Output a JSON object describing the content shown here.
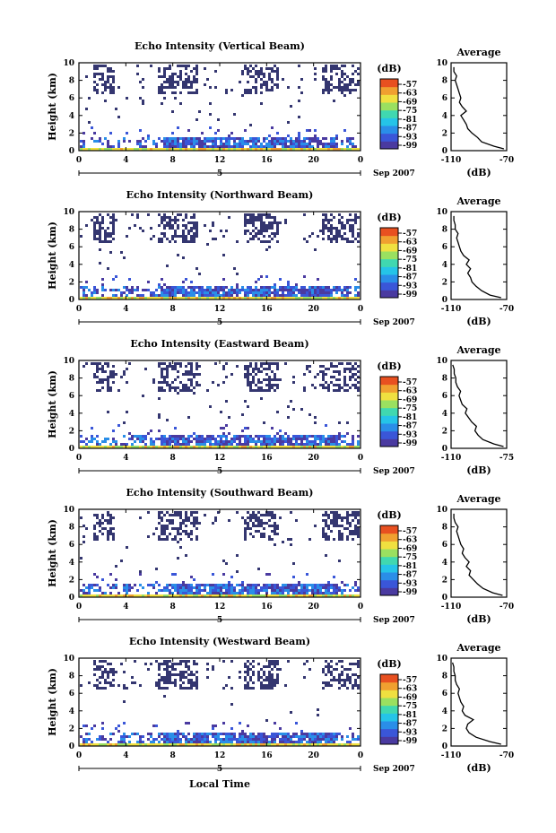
{
  "chart_data": [
    {
      "type": "heatmap",
      "title": "Echo Intensity (Vertical Beam)",
      "ylabel": "Height (km)",
      "xticks": [
        "0",
        "4",
        "8",
        "12",
        "16",
        "20",
        "0"
      ],
      "yticks": [
        "0",
        "2",
        "4",
        "6",
        "8",
        "10"
      ],
      "xlim": [
        0,
        24
      ],
      "ylim": [
        0,
        10
      ],
      "date_marker": "5",
      "date_label": "Sep 2007",
      "colorbar": {
        "unit": "(dB)",
        "ticks": [
          "-57",
          "-63",
          "-69",
          "-75",
          "-81",
          "-87",
          "-93",
          "-99"
        ]
      },
      "average": {
        "title": "Average",
        "xlabel": "(dB)",
        "xticks": [
          "-110",
          "-70"
        ],
        "yticks": [
          "0",
          "2",
          "4",
          "6",
          "8",
          "10"
        ],
        "xlim": [
          -110,
          -70
        ],
        "ylim": [
          0,
          10
        ],
        "height": [
          0.2,
          0.5,
          1.0,
          1.5,
          2.0,
          2.5,
          3.0,
          3.5,
          4.0,
          4.5,
          5.0,
          5.5,
          6.0,
          6.5,
          7.0,
          7.5,
          8.0,
          8.5,
          9.0,
          9.5
        ],
        "value": [
          -72,
          -79,
          -88,
          -91,
          -95,
          -98,
          -99,
          -101,
          -103,
          -99,
          -102,
          -104,
          -103,
          -104,
          -105,
          -106,
          -107,
          -106,
          -108,
          -108
        ]
      }
    },
    {
      "type": "heatmap",
      "title": "Echo Intensity (Northward Beam)",
      "ylabel": "Height (km)",
      "xticks": [
        "0",
        "4",
        "8",
        "12",
        "16",
        "20",
        "0"
      ],
      "yticks": [
        "0",
        "2",
        "4",
        "6",
        "8",
        "10"
      ],
      "xlim": [
        0,
        24
      ],
      "ylim": [
        0,
        10
      ],
      "date_marker": "5",
      "date_label": "Sep 2007",
      "colorbar": {
        "unit": "(dB)",
        "ticks": [
          "-57",
          "-63",
          "-69",
          "-75",
          "-81",
          "-87",
          "-93",
          "-99"
        ]
      },
      "average": {
        "title": "Average",
        "xlabel": "(dB)",
        "xticks": [
          "-110",
          "-70"
        ],
        "yticks": [
          "0",
          "2",
          "4",
          "6",
          "8",
          "10"
        ],
        "xlim": [
          -110,
          -70
        ],
        "ylim": [
          0,
          10
        ],
        "height": [
          0.2,
          0.5,
          1.0,
          1.5,
          2.0,
          2.5,
          3.0,
          3.5,
          4.0,
          4.5,
          5.0,
          5.5,
          6.0,
          6.5,
          7.0,
          7.5,
          8.0,
          8.5,
          9.0,
          9.5
        ],
        "value": [
          -74,
          -82,
          -88,
          -92,
          -95,
          -96,
          -98,
          -96,
          -99,
          -97,
          -101,
          -103,
          -104,
          -105,
          -106,
          -105,
          -107,
          -107,
          -108,
          -108
        ]
      }
    },
    {
      "type": "heatmap",
      "title": "Echo Intensity (Eastward Beam)",
      "ylabel": "Height (km)",
      "xticks": [
        "0",
        "4",
        "8",
        "12",
        "16",
        "20",
        "0"
      ],
      "yticks": [
        "0",
        "2",
        "4",
        "6",
        "8",
        "10"
      ],
      "xlim": [
        0,
        24
      ],
      "ylim": [
        0,
        10
      ],
      "date_marker": "5",
      "date_label": "Sep 2007",
      "colorbar": {
        "unit": "(dB)",
        "ticks": [
          "-57",
          "-63",
          "-69",
          "-75",
          "-81",
          "-87",
          "-93",
          "-99"
        ]
      },
      "average": {
        "title": "Average",
        "xlabel": "(dB)",
        "xticks": [
          "-110",
          "-75"
        ],
        "yticks": [
          "0",
          "2",
          "4",
          "6",
          "8",
          "10"
        ],
        "xlim": [
          -110,
          -75
        ],
        "ylim": [
          0,
          10
        ],
        "height": [
          0.2,
          0.5,
          1.0,
          1.5,
          2.0,
          2.5,
          3.0,
          3.5,
          4.0,
          4.5,
          5.0,
          5.5,
          6.0,
          6.5,
          7.0,
          7.5,
          8.0,
          8.5,
          9.0,
          9.5
        ],
        "value": [
          -77,
          -83,
          -90,
          -93,
          -95,
          -94,
          -97,
          -99,
          -101,
          -100,
          -103,
          -104,
          -105,
          -104,
          -106,
          -107,
          -107,
          -108,
          -108,
          -109
        ]
      }
    },
    {
      "type": "heatmap",
      "title": "Echo Intensity (Southward Beam)",
      "ylabel": "Height (km)",
      "xticks": [
        "0",
        "4",
        "8",
        "12",
        "16",
        "20",
        "0"
      ],
      "yticks": [
        "0",
        "2",
        "4",
        "6",
        "8",
        "10"
      ],
      "xlim": [
        0,
        24
      ],
      "ylim": [
        0,
        10
      ],
      "date_marker": "5",
      "date_label": "Sep 2007",
      "colorbar": {
        "unit": "(dB)",
        "ticks": [
          "-57",
          "-63",
          "-69",
          "-75",
          "-81",
          "-87",
          "-93",
          "-99"
        ]
      },
      "average": {
        "title": "Average",
        "xlabel": "(dB)",
        "xticks": [
          "-110",
          "-70"
        ],
        "yticks": [
          "0",
          "2",
          "4",
          "6",
          "8",
          "10"
        ],
        "xlim": [
          -110,
          -70
        ],
        "ylim": [
          0,
          10
        ],
        "height": [
          0.2,
          0.5,
          1.0,
          1.5,
          2.0,
          2.5,
          3.0,
          3.5,
          4.0,
          4.5,
          5.0,
          5.5,
          6.0,
          6.5,
          7.0,
          7.5,
          8.0,
          8.5,
          9.0,
          9.5
        ],
        "value": [
          -73,
          -80,
          -87,
          -91,
          -94,
          -97,
          -96,
          -99,
          -97,
          -100,
          -102,
          -101,
          -103,
          -104,
          -105,
          -106,
          -105,
          -107,
          -108,
          -108
        ]
      }
    },
    {
      "type": "heatmap",
      "title": "Echo Intensity (Westward Beam)",
      "ylabel": "Height (km)",
      "xticks": [
        "0",
        "4",
        "8",
        "12",
        "16",
        "20",
        "0"
      ],
      "yticks": [
        "0",
        "2",
        "4",
        "6",
        "8",
        "10"
      ],
      "xlim": [
        0,
        24
      ],
      "ylim": [
        0,
        10
      ],
      "xlabel": "Local Time",
      "date_marker": "5",
      "date_label": "Sep 2007",
      "colorbar": {
        "unit": "(dB)",
        "ticks": [
          "-57",
          "-63",
          "-69",
          "-75",
          "-81",
          "-87",
          "-93",
          "-99"
        ]
      },
      "average": {
        "title": "Average",
        "xlabel": "(dB)",
        "xticks": [
          "-110",
          "-70"
        ],
        "yticks": [
          "0",
          "2",
          "4",
          "6",
          "8",
          "10"
        ],
        "xlim": [
          -110,
          -70
        ],
        "ylim": [
          0,
          10
        ],
        "height": [
          0.2,
          0.5,
          1.0,
          1.5,
          2.0,
          2.5,
          3.0,
          3.5,
          4.0,
          4.5,
          5.0,
          5.5,
          6.0,
          6.5,
          7.0,
          7.5,
          8.0,
          8.5,
          9.0,
          9.5
        ],
        "value": [
          -74,
          -82,
          -92,
          -97,
          -99,
          -98,
          -94,
          -100,
          -102,
          -101,
          -103,
          -104,
          -105,
          -104,
          -106,
          -107,
          -107,
          -108,
          -108,
          -109
        ]
      }
    }
  ],
  "colors": {
    "scale": [
      "#4a3aa0",
      "#3a56d8",
      "#2a8ee8",
      "#25c4e8",
      "#40d8b0",
      "#9ae060",
      "#f0e040",
      "#f0a030",
      "#e85020"
    ],
    "sparse": "#343670",
    "ink": "#000000"
  }
}
